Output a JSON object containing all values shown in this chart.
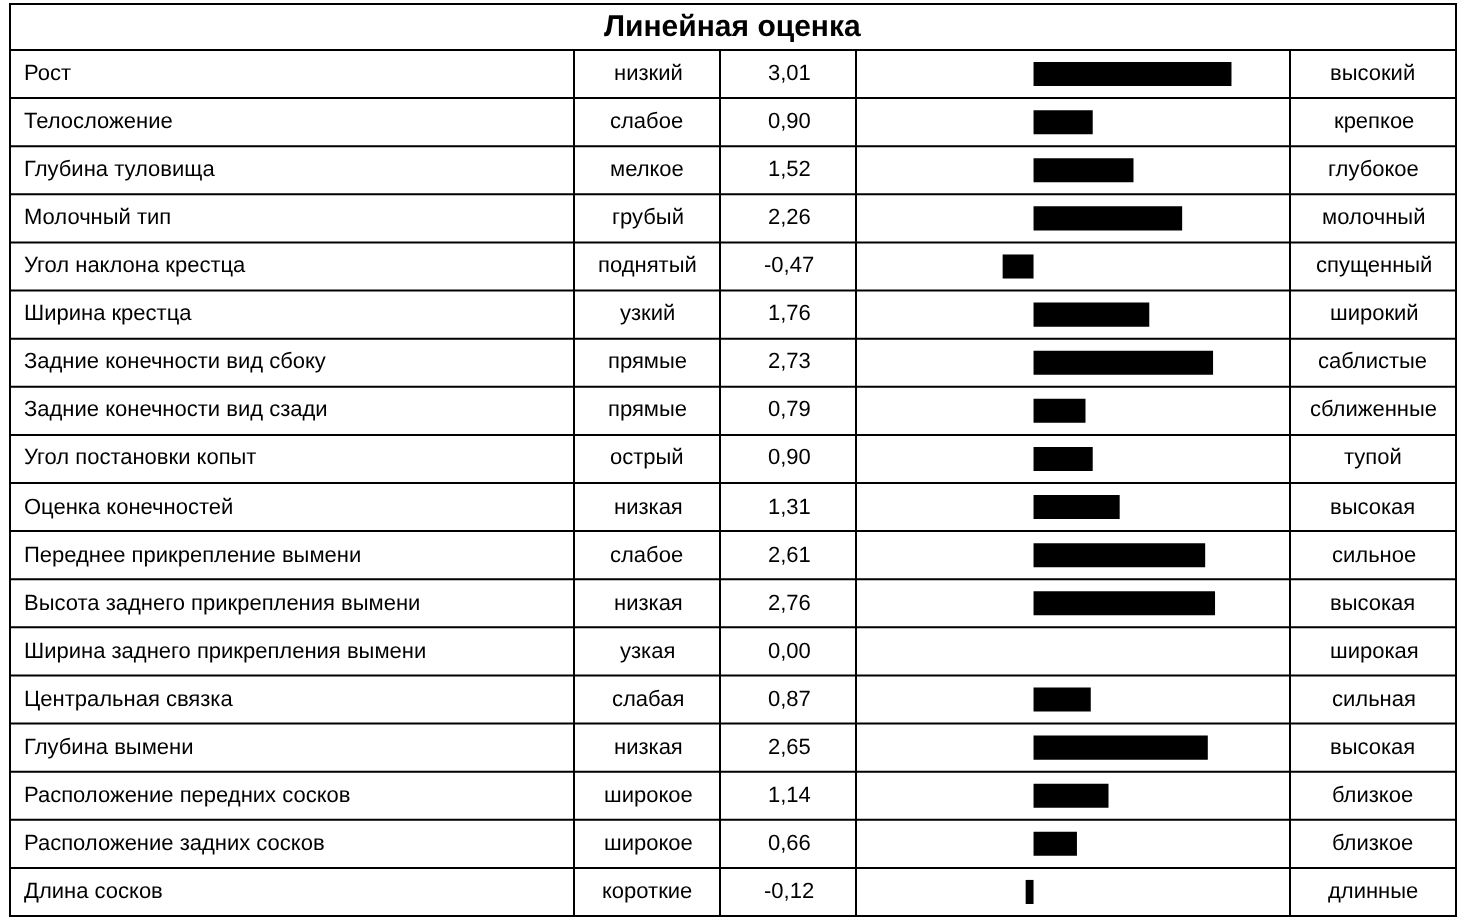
{
  "chart_data": {
    "type": "bar",
    "orientation": "horizontal",
    "title": "Линейная оценка",
    "categories": [
      "Рост",
      "Телосложение",
      "Глубина туловища",
      "Молочный тип",
      "Угол наклона крестца",
      "Ширина крестца",
      "Задние конечности вид сбоку",
      "Задние конечности вид сзади",
      "Угол постановки копыт",
      "Оценка конечностей",
      "Переднее прикрепление вымени",
      "Высота заднего прикрепления вымени",
      "Ширина заднего прикрепления вымени",
      "Центральная связка",
      "Глубина вымени",
      "Расположение передних сосков",
      "Расположение задних сосков",
      "Длина сосков"
    ],
    "values": [
      3.01,
      0.9,
      1.52,
      2.26,
      -0.47,
      1.76,
      2.73,
      0.79,
      0.9,
      1.31,
      2.61,
      2.76,
      0.0,
      0.87,
      2.65,
      1.14,
      0.66,
      -0.12
    ],
    "value_labels": [
      "3,01",
      "0,90",
      "1,52",
      "2,26",
      "-0,47",
      "1,76",
      "2,73",
      "0,79",
      "0,90",
      "1,31",
      "2,61",
      "2,76",
      "0,00",
      "0,87",
      "2,65",
      "1,14",
      "0,66",
      "-0,12"
    ],
    "color": "#000000",
    "xlim": [
      -2.7,
      3.9
    ],
    "annotations": [
      "низкий",
      "высокий",
      "слабое",
      "крепкое",
      "мелкое",
      "глубокое",
      "грубый",
      "молочный",
      "поднятый",
      "спущенный",
      "узкий",
      "широкий",
      "прямые",
      "саблистые",
      "прямые",
      "сближенные",
      "острый",
      "тупой",
      "низкая",
      "высокая",
      "слабое",
      "сильное",
      "низкая",
      "высокая",
      "узкая",
      "широкая",
      "слабая",
      "сильная",
      "низкая",
      "высокая",
      "широкое",
      "близкое",
      "широкое",
      "близкое",
      "короткие",
      "длинные"
    ]
  }
}
